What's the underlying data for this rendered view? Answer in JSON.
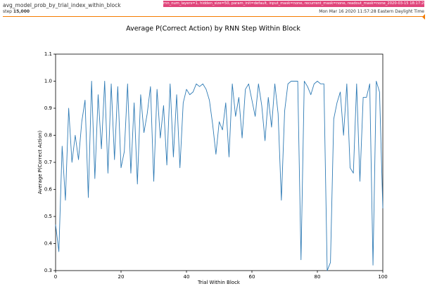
{
  "header": {
    "run_name": "avg_model_prob_by_trial_index_within_block",
    "step_label": "step",
    "step_value": "15,000",
    "run_tag": "rnn_num_layers=1, hidden_size=50, param_init=default, input_mask=none, recurrent_mask=none, readout_mask=none_2020-03-15 18:17:28.747386",
    "timestamp": "Mon Mar 16 2020 11:57:28 Eastern Daylight Time"
  },
  "chart_data": {
    "type": "line",
    "title": "Average P(Correct Action) by RNN Step Within Block",
    "x_label": "Trial Within Block",
    "y_label": "Average P(Correct Action)",
    "xlim": [
      0,
      100
    ],
    "xticks": [
      0,
      20,
      40,
      60,
      80,
      100
    ],
    "ylim": [
      0.3,
      1.1
    ],
    "yticks": [
      0.3,
      0.4,
      0.5,
      0.6,
      0.7,
      0.8,
      0.9,
      {
        "value": 1.0,
        "label": "1.0"
      },
      1.1
    ],
    "x": [
      0,
      1,
      2,
      3,
      4,
      5,
      6,
      7,
      8,
      9,
      10,
      11,
      12,
      13,
      14,
      15,
      16,
      17,
      18,
      19,
      20,
      21,
      22,
      23,
      24,
      25,
      26,
      27,
      28,
      29,
      30,
      31,
      32,
      33,
      34,
      35,
      36,
      37,
      38,
      39,
      40,
      41,
      42,
      43,
      44,
      45,
      46,
      47,
      48,
      49,
      50,
      51,
      52,
      53,
      54,
      55,
      56,
      57,
      58,
      59,
      60,
      61,
      62,
      63,
      64,
      65,
      66,
      67,
      68,
      69,
      70,
      71,
      72,
      73,
      74,
      75,
      76,
      77,
      78,
      79,
      80,
      81,
      82,
      83,
      84,
      85,
      86,
      87,
      88,
      89,
      90,
      91,
      92,
      93,
      94,
      95,
      96,
      97,
      98,
      99,
      100
    ],
    "series": [
      {
        "color": "#2f7bb5",
        "values": [
          0.47,
          0.37,
          0.76,
          0.56,
          0.9,
          0.7,
          0.8,
          0.71,
          0.85,
          0.93,
          0.57,
          1.0,
          0.64,
          0.95,
          0.75,
          1.0,
          0.66,
          0.99,
          0.71,
          0.98,
          0.68,
          0.74,
          0.99,
          0.66,
          0.92,
          0.62,
          0.95,
          0.81,
          0.88,
          0.98,
          0.63,
          0.97,
          0.79,
          0.91,
          0.69,
          0.99,
          0.72,
          0.95,
          0.68,
          0.92,
          0.97,
          0.95,
          0.96,
          0.99,
          0.98,
          0.99,
          0.97,
          0.93,
          0.84,
          0.73,
          0.85,
          0.82,
          0.92,
          0.72,
          0.99,
          0.87,
          0.94,
          0.79,
          0.97,
          0.99,
          0.93,
          0.87,
          0.99,
          0.91,
          0.78,
          0.94,
          0.83,
          0.99,
          0.88,
          0.56,
          0.89,
          0.99,
          1.0,
          1.0,
          1.0,
          0.34,
          1.0,
          0.98,
          0.95,
          0.99,
          1.0,
          0.99,
          0.99,
          0.3,
          0.33,
          0.86,
          0.92,
          0.96,
          0.8,
          0.99,
          0.68,
          0.66,
          0.99,
          0.63,
          0.94,
          0.94,
          0.99,
          0.32,
          1.0,
          0.96,
          0.53
        ]
      }
    ]
  }
}
